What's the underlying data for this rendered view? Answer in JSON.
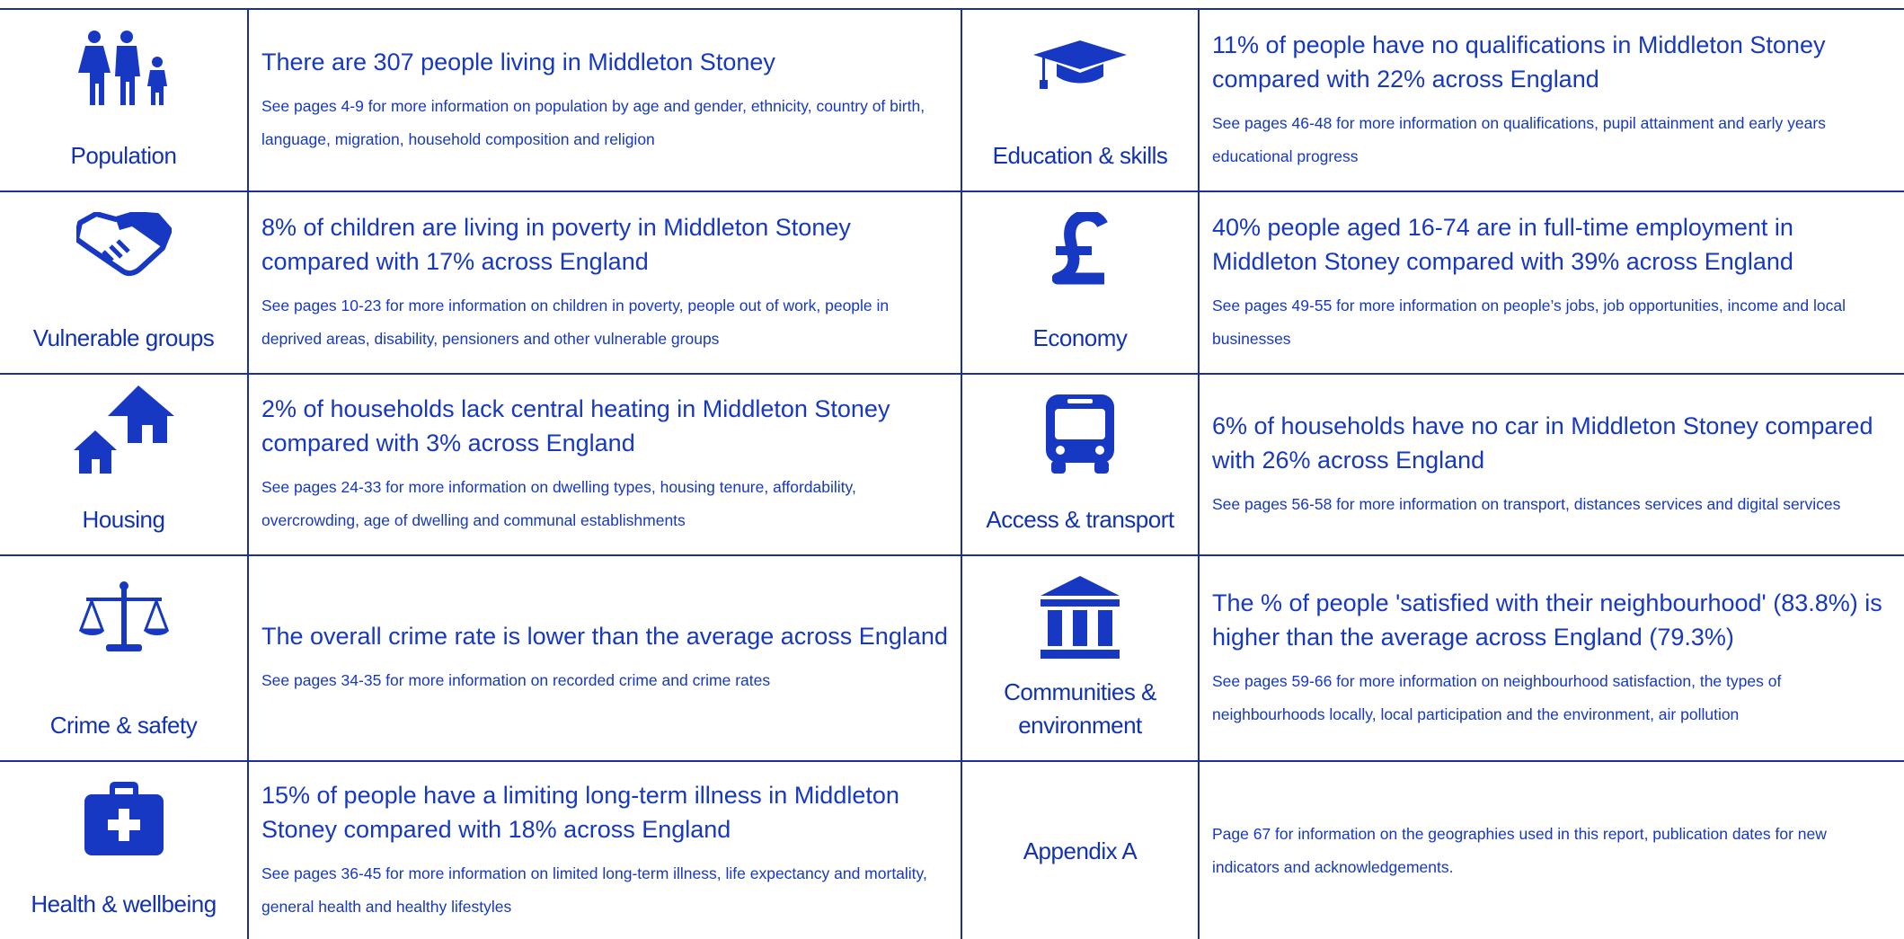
{
  "cells": [
    {
      "label": "Population",
      "headline": "There are 307 people living in Middleton Stoney",
      "detail": "See pages 4-9 for more information on population by age and gender, ethnicity, country of birth, language, migration, household composition and religion"
    },
    {
      "label": "Education & skills",
      "headline": "11% of people have no qualifications in Middleton Stoney compared with 22% across England",
      "detail": "See pages 46-48 for more information on qualifications, pupil attainment and early years educational progress"
    },
    {
      "label": "Vulnerable groups",
      "headline": "8% of children are living in poverty in Middleton Stoney compared with 17% across England",
      "detail": "See pages 10-23 for more information on children in poverty, people out of work, people in deprived areas, disability, pensioners and other vulnerable groups"
    },
    {
      "label": "Economy",
      "headline": "40% people aged 16-74 are in full-time employment in Middleton Stoney compared with 39% across England",
      "detail": "See pages 49-55 for more information on people’s jobs, job opportunities, income and local businesses"
    },
    {
      "label": "Housing",
      "headline": "2% of households lack central heating in Middleton Stoney compared with 3% across England",
      "detail": "See pages 24-33 for more information on dwelling types, housing tenure, affordability, overcrowding, age of dwelling and communal establishments"
    },
    {
      "label": "Access & transport",
      "headline": "6% of households have no car in Middleton Stoney compared with 26% across England",
      "detail": "See pages 56-58 for more information on transport, distances services and digital services"
    },
    {
      "label": "Crime & safety",
      "headline": "The overall crime rate is lower than the average across England",
      "detail": "See pages 34-35 for more information on recorded crime and crime rates"
    },
    {
      "label": "Communities & environment",
      "headline": "The % of people 'satisfied with their neighbourhood' (83.8%) is higher than the average across England (79.3%)",
      "detail": "See pages 59-66 for more information on neighbourhood satisfaction, the types of neighbourhoods locally, local participation and the environment, air pollution"
    },
    {
      "label": "Health & wellbeing",
      "headline": "15% of people have a limiting long-term illness in Middleton Stoney compared with 18% across England",
      "detail": "See pages 36-45 for more information on limited long-term illness, life expectancy and mortality, general health and healthy lifestyles"
    },
    {
      "label": "Appendix A",
      "detail": "Page 67 for information on the geographies used in this report, publication dates for new indicators and acknowledgements."
    }
  ]
}
